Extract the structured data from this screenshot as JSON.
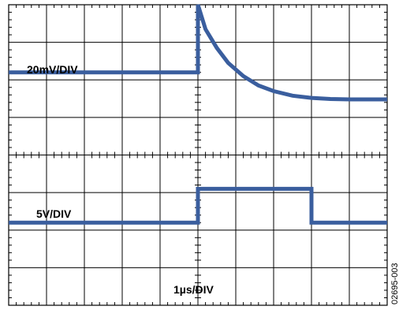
{
  "chart_data": {
    "type": "line",
    "title": "",
    "grid": true,
    "grid_divisions": {
      "horizontal": 10,
      "vertical": 8
    },
    "minor_ticks_per_division": 5,
    "xlabel": "1µs/DIV",
    "x_unit_per_div_us": 1,
    "xlim_div": [
      0,
      10
    ],
    "ylim_div": [
      0,
      8
    ],
    "channel_labels": [
      "20mV/DIV",
      "5V/DIV"
    ],
    "series": [
      {
        "label_index": 0,
        "scale": "20mV/DIV",
        "x_div": [
          0,
          5,
          5,
          5.2,
          5.5,
          5.8,
          6.2,
          6.6,
          7.0,
          7.5,
          8.0,
          8.5,
          9.0,
          9.5,
          10
        ],
        "y_div": [
          6.2,
          6.2,
          8.0,
          7.35,
          6.85,
          6.45,
          6.1,
          5.85,
          5.7,
          5.58,
          5.52,
          5.49,
          5.48,
          5.48,
          5.48
        ]
      },
      {
        "label_index": 1,
        "scale": "5V/DIV",
        "x_div": [
          0,
          5,
          5,
          8,
          8,
          10
        ],
        "y_div": [
          2.2,
          2.2,
          3.1,
          3.1,
          2.2,
          2.2
        ]
      }
    ],
    "line_color": "#3a5e9e",
    "grid_color": "#000000"
  },
  "figure_code": "02695-003"
}
